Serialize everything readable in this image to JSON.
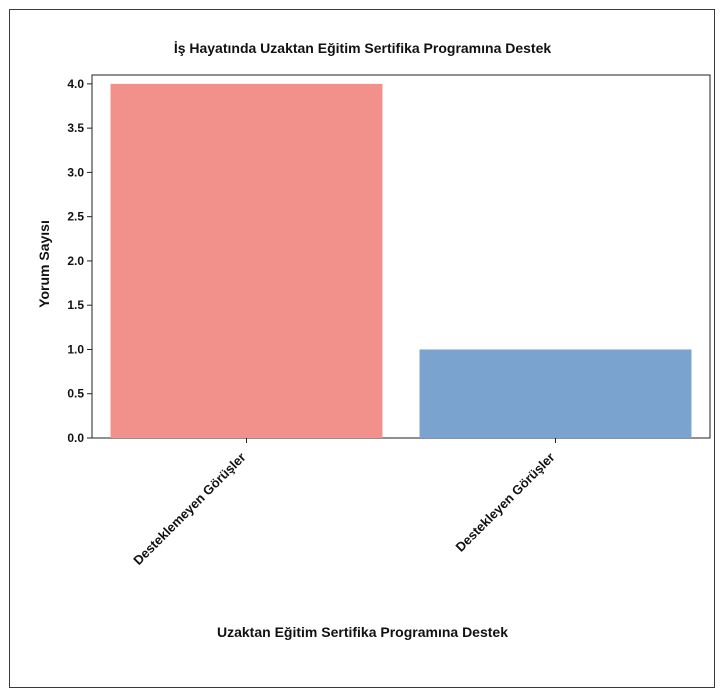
{
  "chart_data": {
    "type": "bar",
    "title": "İş Hayatında Uzaktan Eğitim Sertifika Programına Destek",
    "xlabel": "Uzaktan Eğitim Sertifika Programına Destek",
    "ylabel": "Yorum Sayısı",
    "categories": [
      "Desteklemeyen Görüşler",
      "Destekleyen Görüşler"
    ],
    "values": [
      4,
      1
    ],
    "colors": [
      "#f2918c",
      "#7aa3d0"
    ],
    "ylim": [
      0,
      4.1
    ],
    "yticks": [
      "0.0",
      "0.5",
      "1.0",
      "1.5",
      "2.0",
      "2.5",
      "3.0",
      "3.5",
      "4.0"
    ],
    "grid": false
  }
}
